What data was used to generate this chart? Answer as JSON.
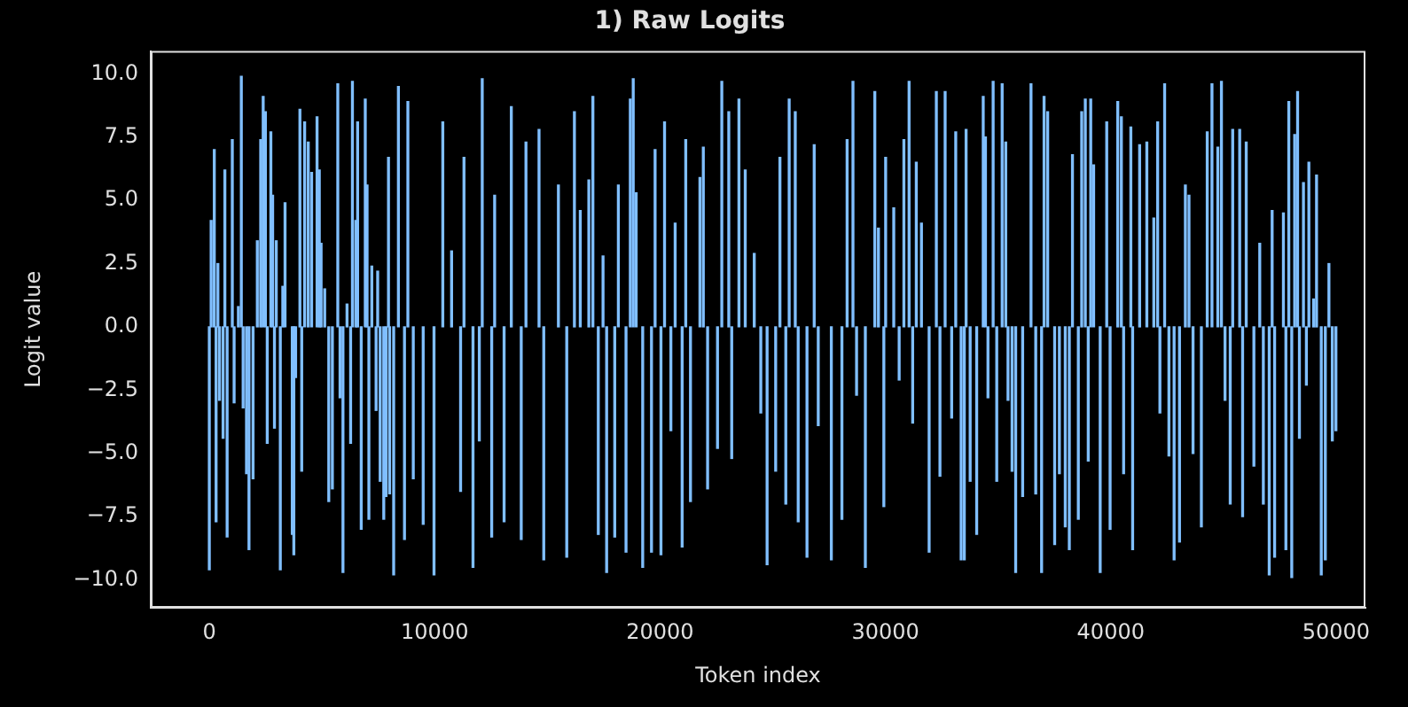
{
  "chart_data": {
    "type": "bar",
    "title": "1) Raw Logits",
    "xlabel": "Token index",
    "ylabel": "Logit value",
    "color": "#80bfff",
    "x": [
      0,
      80,
      220,
      300,
      380,
      450,
      610,
      690,
      790,
      1020,
      1100,
      1290,
      1420,
      1500,
      1650,
      1760,
      1940,
      2130,
      2280,
      2390,
      2490,
      2570,
      2730,
      2810,
      2890,
      2970,
      3150,
      3260,
      3360,
      3680,
      3750,
      3830,
      4020,
      4100,
      4230,
      4390,
      4540,
      4780,
      4880,
      4960,
      5120,
      5300,
      5460,
      5700,
      5800,
      5930,
      6110,
      6270,
      6350,
      6500,
      6580,
      6740,
      6920,
      7000,
      7080,
      7210,
      7400,
      7470,
      7580,
      7740,
      7840,
      7950,
      8000,
      8180,
      8390,
      8660,
      8810,
      9050,
      9490,
      9970,
      10360,
      10750,
      11150,
      11300,
      11700,
      11980,
      12110,
      12530,
      12660,
      13080,
      13400,
      13840,
      14050,
      14630,
      14840,
      15490,
      15860,
      16200,
      16460,
      16840,
      17020,
      17260,
      17470,
      17630,
      17990,
      18150,
      18490,
      18680,
      18810,
      18940,
      19230,
      19620,
      19780,
      20040,
      20200,
      20480,
      20670,
      20980,
      21140,
      21350,
      21770,
      21920,
      22110,
      22550,
      22740,
      23050,
      23180,
      23500,
      23780,
      24180,
      24470,
      24750,
      25130,
      25320,
      25580,
      25730,
      26000,
      26130,
      26520,
      26840,
      27020,
      27600,
      28070,
      28300,
      28560,
      28720,
      29110,
      29530,
      29690,
      29930,
      30010,
      30370,
      30610,
      30820,
      31050,
      31210,
      31370,
      31600,
      31940,
      32260,
      32420,
      32650,
      32940,
      33120,
      33360,
      33500,
      33580,
      33760,
      34050,
      34340,
      34440,
      34550,
      34780,
      34940,
      35180,
      35340,
      35440,
      35620,
      35780,
      36090,
      36460,
      36670,
      36930,
      37040,
      37200,
      37510,
      37720,
      37980,
      38160,
      38300,
      38560,
      38710,
      38870,
      39000,
      39110,
      39240,
      39530,
      39820,
      39970,
      40310,
      40470,
      40570,
      40890,
      40970,
      41280,
      41600,
      41910,
      42080,
      42180,
      42390,
      42580,
      42810,
      43050,
      43310,
      43470,
      43650,
      44020,
      44280,
      44490,
      44750,
      44910,
      45070,
      45300,
      45410,
      45720,
      45850,
      46010,
      46350,
      46610,
      46770,
      47030,
      47160,
      47270,
      47660,
      47770,
      47900,
      48030,
      48160,
      48290,
      48370,
      48550,
      48680,
      48790,
      49000,
      49130,
      49340,
      49520,
      49680,
      49830,
      49990
    ],
    "values": [
      -9.6,
      4.2,
      7.0,
      -7.7,
      2.5,
      -2.9,
      -4.4,
      6.2,
      -8.3,
      7.4,
      -3.0,
      0.8,
      9.9,
      -3.2,
      -5.8,
      -8.8,
      -6.0,
      3.4,
      7.4,
      9.1,
      8.5,
      -4.6,
      7.7,
      5.2,
      -4.0,
      3.4,
      -9.6,
      1.6,
      4.9,
      -8.2,
      -9.0,
      -2.0,
      8.6,
      -5.7,
      8.1,
      7.3,
      6.1,
      8.3,
      6.2,
      3.3,
      1.5,
      -6.9,
      -6.4,
      9.6,
      -2.8,
      -9.7,
      0.9,
      -4.6,
      9.7,
      4.2,
      8.1,
      -8.0,
      9.0,
      5.6,
      -7.6,
      2.4,
      -3.3,
      2.2,
      -6.1,
      -7.6,
      -6.7,
      6.7,
      -6.6,
      -9.8,
      9.5,
      -8.4,
      8.9,
      -6.0,
      -7.8,
      -9.8,
      8.1,
      3.0,
      -6.5,
      6.7,
      -9.5,
      -4.5,
      9.8,
      -8.3,
      5.2,
      -7.7,
      8.7,
      -8.4,
      7.3,
      7.8,
      -9.2,
      5.6,
      -9.1,
      8.5,
      4.6,
      5.8,
      9.1,
      -8.2,
      2.8,
      -9.7,
      -8.3,
      5.6,
      -8.9,
      9.0,
      9.8,
      5.3,
      -9.5,
      -8.9,
      7.0,
      -9.0,
      8.1,
      -4.1,
      4.1,
      -8.7,
      7.4,
      -6.9,
      5.9,
      7.1,
      -6.4,
      -4.8,
      9.7,
      8.5,
      -5.2,
      9.0,
      6.2,
      2.9,
      -3.4,
      -9.4,
      -5.7,
      6.7,
      -7.0,
      9.0,
      8.5,
      -7.7,
      -9.1,
      7.2,
      -3.9,
      -9.2,
      -7.6,
      7.4,
      9.7,
      -2.7,
      -9.5,
      9.3,
      3.9,
      -7.1,
      6.7,
      4.7,
      -2.1,
      7.4,
      9.7,
      -3.8,
      6.5,
      4.1,
      -8.9,
      9.3,
      -5.9,
      9.3,
      -3.6,
      7.7,
      -9.2,
      -9.2,
      7.8,
      -6.1,
      -8.2,
      9.1,
      7.5,
      -2.8,
      9.7,
      -6.1,
      9.6,
      7.3,
      -2.9,
      -5.7,
      -9.7,
      -6.7,
      9.6,
      -6.6,
      -9.7,
      9.1,
      8.5,
      -8.6,
      -5.8,
      -7.9,
      -8.8,
      6.8,
      -7.6,
      8.5,
      9.0,
      -5.3,
      9.0,
      6.4,
      -9.7,
      8.1,
      -8.0,
      8.9,
      8.3,
      -5.8,
      7.9,
      -8.8,
      7.2,
      7.3,
      4.3,
      8.1,
      -3.4,
      9.6,
      -5.1,
      -9.2,
      -8.5,
      5.6,
      5.2,
      -5.0,
      -7.9,
      7.7,
      9.6,
      7.1,
      9.7,
      -2.9,
      -7.0,
      7.8,
      7.8,
      -7.5,
      7.3,
      -5.5,
      3.3,
      -7.0,
      -9.8,
      4.6,
      -9.1,
      4.5,
      -8.8,
      8.9,
      -9.9,
      7.6,
      9.3,
      -4.4,
      5.7,
      -2.3,
      6.5,
      1.1,
      6.0,
      -9.8,
      -9.2,
      2.5,
      -4.5,
      -4.1
    ],
    "xlim": [
      -2600,
      51300
    ],
    "xticks": [
      0,
      10000,
      20000,
      30000,
      40000,
      50000
    ],
    "ylim": [
      -11.1,
      10.9
    ],
    "yticks": [
      {
        "value": -10,
        "label": "−10.0"
      },
      {
        "value": -7.5,
        "label": "−7.5"
      },
      {
        "value": -5,
        "label": "−5.0"
      },
      {
        "value": -2.5,
        "label": "−2.5"
      },
      {
        "value": 0,
        "label": "0.0"
      },
      {
        "value": 2.5,
        "label": "2.5"
      },
      {
        "value": 5,
        "label": "5.0"
      },
      {
        "value": 7.5,
        "label": "7.5"
      },
      {
        "value": 10,
        "label": "10.0"
      }
    ],
    "grid": false,
    "legend": false
  }
}
